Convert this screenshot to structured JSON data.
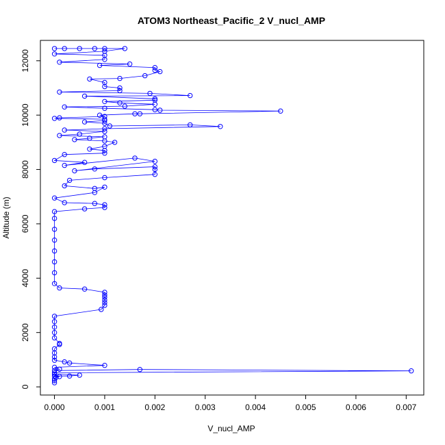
{
  "chart_data": {
    "type": "scatter",
    "title": "ATOM3 Northeast_Pacific_2 V_nucl_AMP",
    "xlabel": "V_nucl_AMP",
    "ylabel": "Altitude (m)",
    "xlim": [
      -0.00028,
      0.00735
    ],
    "ylim": [
      -300,
      12750
    ],
    "x_ticks": [
      0,
      0.001,
      0.002,
      0.003,
      0.004,
      0.005,
      0.006,
      0.007
    ],
    "x_tick_labels": [
      "0.000",
      "0.001",
      "0.002",
      "0.003",
      "0.004",
      "0.005",
      "0.006",
      "0.007"
    ],
    "y_ticks": [
      0,
      2000,
      4000,
      6000,
      8000,
      10000,
      12000
    ],
    "y_tick_labels": [
      "0",
      "2000",
      "4000",
      "6000",
      "8000",
      "10000",
      "12000"
    ],
    "grid": false,
    "legend": "none",
    "marker": "open-circle",
    "connected": true,
    "color": "#0000ff",
    "series": [
      {
        "points": [
          [
            0,
            150
          ],
          [
            0,
            230
          ],
          [
            0,
            300
          ],
          [
            3e-05,
            350
          ],
          [
            0.0001,
            380
          ],
          [
            0,
            400
          ],
          [
            0.0003,
            400
          ],
          [
            0.0005,
            430
          ],
          [
            0,
            470
          ],
          [
            0,
            520
          ],
          [
            0.0071,
            590
          ],
          [
            0.0017,
            640
          ],
          [
            0,
            600
          ],
          [
            0.0001,
            650
          ],
          [
            0,
            720
          ],
          [
            0.001,
            790
          ],
          [
            0.0003,
            880
          ],
          [
            0.0002,
            920
          ],
          [
            0,
            980
          ],
          [
            0,
            1100
          ],
          [
            0,
            1250
          ],
          [
            0,
            1400
          ],
          [
            0.0001,
            1560
          ],
          [
            0.0001,
            1600
          ],
          [
            0,
            1800
          ],
          [
            0,
            2000
          ],
          [
            0,
            2200
          ],
          [
            0,
            2400
          ],
          [
            0,
            2600
          ],
          [
            0.00093,
            2850
          ],
          [
            0.001,
            3000
          ],
          [
            0.001,
            3100
          ],
          [
            0.001,
            3200
          ],
          [
            0.001,
            3300
          ],
          [
            0.001,
            3380
          ],
          [
            0.001,
            3480
          ],
          [
            0.0006,
            3600
          ],
          [
            0.0001,
            3640
          ],
          [
            0,
            3800
          ],
          [
            0,
            4200
          ],
          [
            0,
            4600
          ],
          [
            0,
            5000
          ],
          [
            0,
            5400
          ],
          [
            0,
            5800
          ],
          [
            0,
            6200
          ],
          [
            0,
            6450
          ],
          [
            0.0006,
            6550
          ],
          [
            0.001,
            6600
          ],
          [
            0.001,
            6700
          ],
          [
            0.0008,
            6750
          ],
          [
            0.0002,
            6780
          ],
          [
            0,
            6950
          ],
          [
            0.0008,
            7150
          ],
          [
            0.001,
            7350
          ],
          [
            0.0008,
            7300
          ],
          [
            0.0002,
            7400
          ],
          [
            0.0003,
            7600
          ],
          [
            0.001,
            7700
          ],
          [
            0.002,
            7820
          ],
          [
            0.002,
            8000
          ],
          [
            0.002,
            8100
          ],
          [
            0.0008,
            8020
          ],
          [
            0.0004,
            7950
          ],
          [
            0.002,
            8300
          ],
          [
            0.0016,
            8420
          ],
          [
            0.0002,
            8150
          ],
          [
            0.0006,
            8260
          ],
          [
            0,
            8330
          ],
          [
            0.0002,
            8550
          ],
          [
            0.001,
            8600
          ],
          [
            0.001,
            8700
          ],
          [
            0.0007,
            8750
          ],
          [
            0.001,
            8850
          ],
          [
            0.0012,
            9000
          ],
          [
            0.001,
            9050
          ],
          [
            0.0004,
            9100
          ],
          [
            0.0007,
            9150
          ],
          [
            0.001,
            9200
          ],
          [
            0.0001,
            9250
          ],
          [
            0.0005,
            9300
          ],
          [
            0.001,
            9400
          ],
          [
            0.0002,
            9450
          ],
          [
            0.001,
            9500
          ],
          [
            0.0033,
            9580
          ],
          [
            0.0027,
            9640
          ],
          [
            0.0011,
            9600
          ],
          [
            0.001,
            9700
          ],
          [
            0.0006,
            9750
          ],
          [
            0.001,
            9800
          ],
          [
            0.001,
            9850
          ],
          [
            0,
            9880
          ],
          [
            0.0001,
            9900
          ],
          [
            0.001,
            9950
          ],
          [
            0.0009,
            10000
          ],
          [
            0.0016,
            10050
          ],
          [
            0.0017,
            10050
          ],
          [
            0.0045,
            10150
          ],
          [
            0.0021,
            10180
          ],
          [
            0.002,
            10200
          ],
          [
            0.001,
            10250
          ],
          [
            0.0002,
            10300
          ],
          [
            0.0014,
            10330
          ],
          [
            0.002,
            10400
          ],
          [
            0.0013,
            10450
          ],
          [
            0.001,
            10500
          ],
          [
            0.002,
            10550
          ],
          [
            0.002,
            10600
          ],
          [
            0.0006,
            10700
          ],
          [
            0.0027,
            10720
          ],
          [
            0.0019,
            10800
          ],
          [
            0.0001,
            10850
          ],
          [
            0.0013,
            10900
          ],
          [
            0.0013,
            11000
          ],
          [
            0.001,
            11050
          ],
          [
            0.001,
            11200
          ],
          [
            0.0007,
            11330
          ],
          [
            0.0013,
            11350
          ],
          [
            0.0018,
            11450
          ],
          [
            0.0021,
            11600
          ],
          [
            0.002,
            11650
          ],
          [
            0.002,
            11750
          ],
          [
            0.0009,
            11830
          ],
          [
            0.0015,
            11880
          ],
          [
            0.0001,
            11950
          ],
          [
            0.001,
            12050
          ],
          [
            0.001,
            12200
          ],
          [
            0,
            12250
          ],
          [
            0.001,
            12350
          ],
          [
            0.0014,
            12450
          ],
          [
            0.001,
            12450
          ],
          [
            0.0008,
            12450
          ],
          [
            0.0005,
            12450
          ],
          [
            0.0002,
            12450
          ],
          [
            0,
            12450
          ]
        ]
      }
    ]
  }
}
